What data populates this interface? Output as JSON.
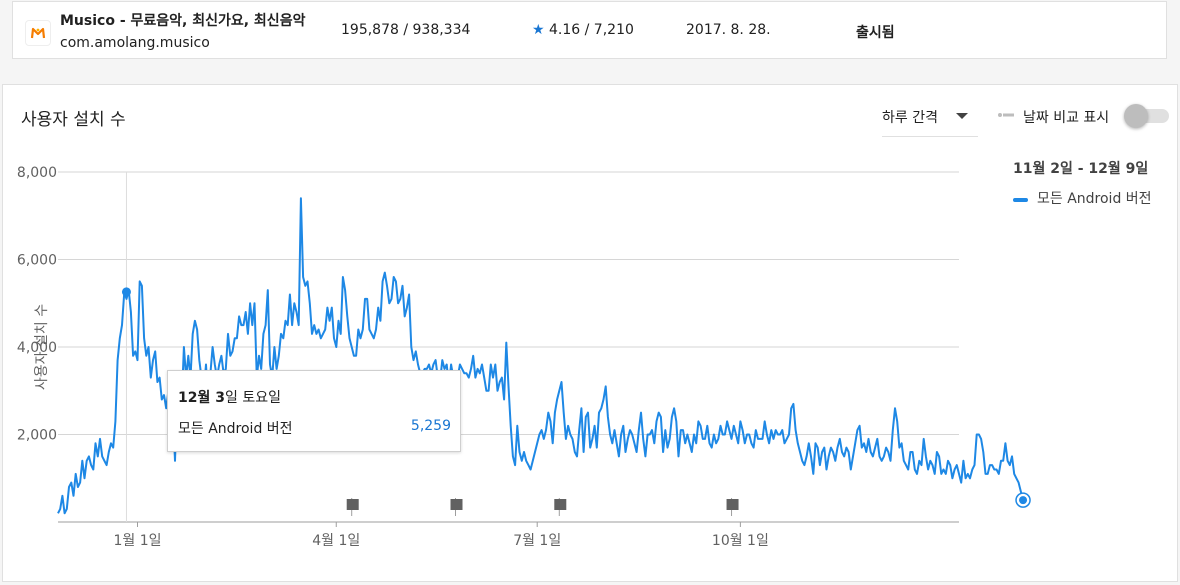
{
  "app": {
    "name": "Musico - 무료음악, 최신가요, 최신음악",
    "package": "com.amolang.musico",
    "installs": "195,878 / 938,334",
    "rating_star": "★",
    "rating": "4.16 / 7,210",
    "released": "2017. 8. 28.",
    "status": "출시됨"
  },
  "card": {
    "title": "사용자 설치 수",
    "interval_label": "하루 간격",
    "compare_label": "날짜 비교 표시",
    "date_range": "11월 2일 - 12월 9일",
    "legend_label": "모든 Android 버전"
  },
  "tooltip": {
    "date_prefix": "12월 ",
    "date_day": "3",
    "date_suffix": "일 토요일",
    "series": "모든 Android 버전",
    "value": "5,259"
  },
  "colors": {
    "line": "#1e88e5",
    "grid": "#d6d6d6",
    "axis_text": "#616161"
  },
  "chart_data": {
    "type": "line",
    "ylabel": "사용자 설치 수",
    "xlabel": "",
    "ylim": [
      0,
      8000
    ],
    "y_ticks": [
      2000,
      4000,
      6000,
      8000
    ],
    "y_tick_labels": [
      "2,000",
      "4,000",
      "6,000",
      "8,000"
    ],
    "x_tick_labels": [
      "1월 1일",
      "4월 1일",
      "7월 1일",
      "10월 1일"
    ],
    "x_tick_days": [
      36,
      126,
      217,
      309
    ],
    "x_range_days": [
      0,
      408
    ],
    "highlight": {
      "day": 31,
      "value": 5259
    },
    "annotation_flag_days": [
      133,
      180,
      227,
      305
    ],
    "series": [
      {
        "name": "모든 Android 버전",
        "values": [
          200,
          300,
          600,
          200,
          300,
          800,
          900,
          600,
          1100,
          800,
          900,
          1400,
          1000,
          1400,
          1500,
          1300,
          1200,
          1800,
          1500,
          1900,
          1500,
          1400,
          1300,
          1600,
          1800,
          1700,
          2300,
          3700,
          4200,
          4500,
          5259,
          5100,
          5300,
          4800,
          3800,
          3900,
          3700,
          5500,
          5400,
          4200,
          3800,
          4000,
          3300,
          3700,
          3900,
          3200,
          3300,
          2800,
          2900,
          2600,
          3000,
          3400,
          2600,
          1400,
          3000,
          2600,
          2700,
          4000,
          3300,
          3800,
          3300,
          4300,
          4600,
          4400,
          3700,
          3300,
          3000,
          3600,
          2700,
          3400,
          4000,
          3600,
          3300,
          3600,
          3800,
          3400,
          3500,
          4300,
          3800,
          3900,
          4200,
          4200,
          4700,
          4500,
          4500,
          4800,
          4300,
          5000,
          4500,
          5000,
          3300,
          3800,
          3500,
          4300,
          4500,
          5300,
          3600,
          3300,
          4000,
          3500,
          3800,
          4300,
          4200,
          4600,
          4500,
          5200,
          4500,
          5000,
          4800,
          4500,
          7400,
          5600,
          5400,
          5500,
          5000,
          4300,
          4500,
          4300,
          4400,
          4200,
          4300,
          4400,
          4900,
          4600,
          4900,
          4200,
          4000,
          4600,
          4300,
          5600,
          5300,
          4700,
          4200,
          4000,
          3800,
          3800,
          4400,
          4200,
          4400,
          5100,
          5100,
          4400,
          4300,
          4200,
          4400,
          4900,
          4600,
          5500,
          5700,
          5400,
          5000,
          5100,
          5600,
          5500,
          5000,
          5100,
          5400,
          4700,
          4900,
          5200,
          4000,
          3700,
          3900,
          3600,
          3400,
          3400,
          3500,
          3500,
          3600,
          3400,
          3600,
          3700,
          3300,
          3200,
          3700,
          3500,
          3600,
          3100,
          3600,
          3300,
          3400,
          3300,
          3600,
          3500,
          3400,
          3400,
          3300,
          3500,
          3800,
          3300,
          3500,
          3400,
          3600,
          3300,
          3000,
          3000,
          3600,
          3300,
          3600,
          3000,
          3200,
          3300,
          2800,
          4100,
          3100,
          2200,
          1500,
          1300,
          2200,
          1600,
          1400,
          1600,
          1400,
          1300,
          1200,
          1400,
          1600,
          1800,
          2000,
          2100,
          1900,
          2100,
          2500,
          2300,
          1800,
          2500,
          2800,
          3000,
          3200,
          2500,
          1900,
          2200,
          2000,
          1900,
          1600,
          1500,
          2100,
          2600,
          1600,
          2400,
          2500,
          1700,
          1900,
          2200,
          1700,
          2500,
          2600,
          2800,
          3100,
          2400,
          2000,
          1800,
          2100,
          1800,
          1500,
          2000,
          2200,
          1600,
          1900,
          2100,
          2000,
          1800,
          1600,
          2100,
          2500,
          1900,
          1500,
          2000,
          2000,
          2100,
          1800,
          2300,
          2500,
          2400,
          1600,
          2100,
          1700,
          1900,
          2400,
          2600,
          2300,
          1500,
          2100,
          2100,
          1800,
          2000,
          1800,
          1600,
          2000,
          1800,
          2300,
          2200,
          1900,
          1900,
          2200,
          1800,
          1700,
          2000,
          1800,
          1900,
          2200,
          2000,
          2000,
          2300,
          2100,
          1900,
          2200,
          2000,
          1800,
          2300,
          2100,
          1800,
          2000,
          2000,
          1800,
          1700,
          2100,
          1900,
          1900,
          1900,
          2300,
          2000,
          1800,
          2100,
          1900,
          2100,
          2000,
          2000,
          2100,
          1800,
          1900,
          2000,
          2600,
          2700,
          2100,
          1800,
          1600,
          1400,
          1300,
          1500,
          1800,
          1500,
          1100,
          1800,
          1700,
          1300,
          1600,
          1700,
          1200,
          1500,
          1700,
          1600,
          1400,
          1700,
          1900,
          1600,
          1500,
          1700,
          1600,
          1200,
          1500,
          1800,
          2100,
          2200,
          1700,
          1800,
          1600,
          1900,
          1600,
          1500,
          1700,
          1900,
          1500,
          1400,
          1500,
          1700,
          1600,
          1400,
          2100,
          2600,
          2300,
          1700,
          1800,
          1400,
          1300,
          1200,
          1600,
          1600,
          1200,
          1100,
          1400,
          1300,
          1900,
          1500,
          1200,
          1400,
          1300,
          1100,
          1600,
          1500,
          1100,
          1200,
          1100,
          1400,
          1300,
          1000,
          1200,
          1300,
          1100,
          900,
          1400,
          1000,
          1100,
          1000,
          1200,
          1300,
          2000,
          2000,
          1900,
          1600,
          1100,
          1100,
          1300,
          1300,
          1200,
          1200,
          1100,
          1400,
          1400,
          1800,
          1400,
          1300,
          1500,
          1100,
          1000,
          900,
          700,
          500
        ]
      }
    ]
  }
}
